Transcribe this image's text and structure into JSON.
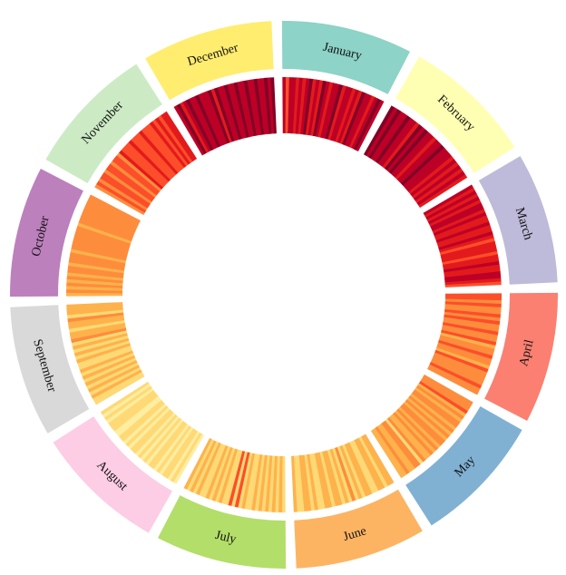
{
  "chart_data": {
    "type": "radial-heatmap",
    "months": [
      {
        "name": "January",
        "color": "#8dd3c7"
      },
      {
        "name": "February",
        "color": "#ffffb3"
      },
      {
        "name": "March",
        "color": "#bebada"
      },
      {
        "name": "April",
        "color": "#fb8072"
      },
      {
        "name": "May",
        "color": "#80b1d3"
      },
      {
        "name": "June",
        "color": "#fdb462"
      },
      {
        "name": "July",
        "color": "#b3de69"
      },
      {
        "name": "August",
        "color": "#fccde5"
      },
      {
        "name": "September",
        "color": "#d9d9d9"
      },
      {
        "name": "October",
        "color": "#bc80bd"
      },
      {
        "name": "November",
        "color": "#ccebc5"
      },
      {
        "name": "December",
        "color": "#ffed6f"
      }
    ],
    "color_scale": [
      "#ffffcc",
      "#ffeda0",
      "#fed976",
      "#feb24c",
      "#fd8d3c",
      "#fc4e2a",
      "#e31a1c",
      "#bd0026",
      "#800026"
    ],
    "daily_values": [
      [
        0.84,
        0.66,
        0.86,
        0.92,
        0.78,
        0.9,
        0.7,
        0.82,
        0.94,
        0.8,
        0.88,
        0.74,
        0.96,
        0.86,
        0.72,
        0.9,
        0.82,
        0.98,
        0.76,
        0.88,
        0.92,
        0.8,
        0.86,
        0.7,
        0.94,
        0.84,
        0.9,
        0.78,
        0.88,
        0.96,
        0.82
      ],
      [
        0.94,
        0.88,
        0.96,
        0.82,
        0.9,
        0.98,
        0.86,
        0.92,
        0.8,
        0.94,
        0.88,
        0.96,
        0.84,
        0.9,
        0.78,
        0.92,
        0.86,
        0.94,
        0.9,
        0.82,
        0.88,
        0.76,
        0.84,
        0.8,
        0.86,
        0.74,
        0.82,
        0.78
      ],
      [
        0.84,
        0.8,
        0.9,
        0.78,
        0.86,
        0.74,
        0.82,
        0.88,
        0.76,
        0.84,
        0.72,
        0.8,
        0.86,
        0.7,
        0.78,
        0.82,
        0.74,
        0.68,
        0.76,
        0.8,
        0.72,
        0.66,
        0.78,
        0.7,
        0.82,
        0.76,
        0.74,
        0.88,
        0.84,
        0.8,
        0.66
      ],
      [
        0.58,
        0.62,
        0.52,
        0.6,
        0.48,
        0.56,
        0.64,
        0.5,
        0.58,
        0.44,
        0.54,
        0.6,
        0.46,
        0.52,
        0.58,
        0.42,
        0.56,
        0.5,
        0.62,
        0.48,
        0.54,
        0.4,
        0.58,
        0.52,
        0.46,
        0.56,
        0.5,
        0.6,
        0.44,
        0.54
      ],
      [
        0.54,
        0.5,
        0.46,
        0.58,
        0.42,
        0.5,
        0.36,
        0.52,
        0.44,
        0.38,
        0.56,
        0.4,
        0.48,
        0.34,
        0.5,
        0.44,
        0.38,
        0.46,
        0.32,
        0.52,
        0.4,
        0.36,
        0.48,
        0.3,
        0.44,
        0.5,
        0.38,
        0.42,
        0.46,
        0.34,
        0.4
      ],
      [
        0.32,
        0.38,
        0.28,
        0.36,
        0.42,
        0.3,
        0.26,
        0.4,
        0.34,
        0.22,
        0.38,
        0.3,
        0.44,
        0.28,
        0.36,
        0.24,
        0.4,
        0.32,
        0.2,
        0.34,
        0.38,
        0.28,
        0.3,
        0.36,
        0.24,
        0.4,
        0.34,
        0.3,
        0.26,
        0.38
      ],
      [
        0.3,
        0.36,
        0.26,
        0.34,
        0.2,
        0.38,
        0.28,
        0.32,
        0.24,
        0.36,
        0.3,
        0.22,
        0.34,
        0.28,
        0.58,
        0.26,
        0.62,
        0.3,
        0.24,
        0.36,
        0.28,
        0.32,
        0.2,
        0.34,
        0.26,
        0.3,
        0.36,
        0.22,
        0.32,
        0.28,
        0.34
      ],
      [
        0.18,
        0.26,
        0.14,
        0.22,
        0.3,
        0.16,
        0.24,
        0.12,
        0.28,
        0.2,
        0.1,
        0.26,
        0.18,
        0.22,
        0.14,
        0.3,
        0.2,
        0.12,
        0.24,
        0.16,
        0.28,
        0.22,
        0.18,
        0.14,
        0.26,
        0.2,
        0.3,
        0.16,
        0.24,
        0.12,
        0.22
      ],
      [
        0.3,
        0.22,
        0.34,
        0.26,
        0.38,
        0.2,
        0.32,
        0.28,
        0.36,
        0.24,
        0.4,
        0.3,
        0.22,
        0.34,
        0.28,
        0.42,
        0.26,
        0.36,
        0.3,
        0.44,
        0.32,
        0.38,
        0.28,
        0.4,
        0.34,
        0.46,
        0.3,
        0.36,
        0.42,
        0.38
      ],
      [
        0.4,
        0.46,
        0.36,
        0.5,
        0.42,
        0.48,
        0.38,
        0.52,
        0.44,
        0.4,
        0.5,
        0.46,
        0.54,
        0.42,
        0.48,
        0.56,
        0.44,
        0.5,
        0.46,
        0.52,
        0.48,
        0.42,
        0.54,
        0.5,
        0.46,
        0.56,
        0.52,
        0.44,
        0.5,
        0.48,
        0.54
      ],
      [
        0.56,
        0.6,
        0.52,
        0.64,
        0.58,
        0.5,
        0.66,
        0.6,
        0.54,
        0.68,
        0.62,
        0.56,
        0.7,
        0.6,
        0.64,
        0.58,
        0.72,
        0.62,
        0.66,
        0.6,
        0.74,
        0.64,
        0.68,
        0.62,
        0.76,
        0.66,
        0.7,
        0.64,
        0.78,
        0.72
      ],
      [
        0.86,
        0.94,
        0.8,
        0.9,
        0.98,
        0.84,
        0.92,
        0.96,
        0.82,
        0.9,
        0.88,
        0.96,
        0.8,
        0.94,
        0.86,
        0.92,
        0.98,
        0.84,
        0.9,
        0.96,
        0.88,
        0.82,
        0.94,
        0.9,
        0.86,
        0.98,
        0.92,
        0.84,
        0.96,
        0.9,
        0.94
      ]
    ]
  }
}
